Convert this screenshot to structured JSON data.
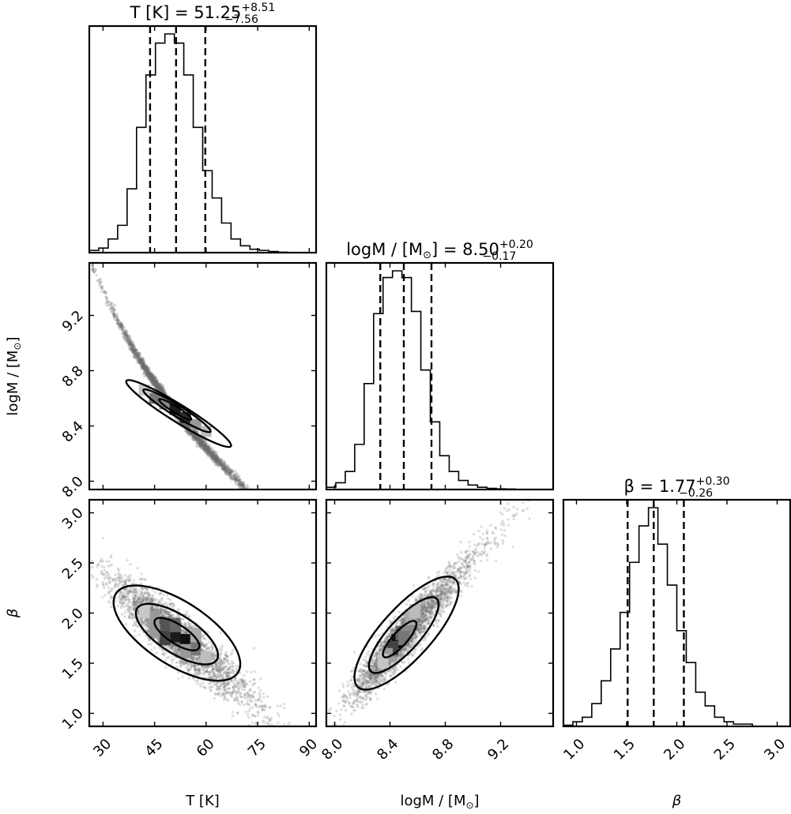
{
  "chart_data": {
    "type": "corner",
    "parameters": [
      {
        "key": "T",
        "label": "T [K]",
        "range": [
          26,
          92
        ],
        "ticks": [
          "30",
          "45",
          "60",
          "75",
          "90"
        ],
        "tick_values": [
          30,
          45,
          60,
          75,
          90
        ],
        "title_base": "T [K] = 51.25",
        "title_sup": "+8.51",
        "title_sub": "−7.56",
        "median": 51.25,
        "q16": 43.69,
        "q84": 59.76
      },
      {
        "key": "logM",
        "label": "logM / [M",
        "label_end": "]",
        "sun_symbol": "⊙",
        "range": [
          7.94,
          9.58
        ],
        "ticks": [
          "8.0",
          "8.4",
          "8.8",
          "9.2"
        ],
        "tick_values": [
          8.0,
          8.4,
          8.8,
          9.2
        ],
        "title_base": "logM / [M",
        "title_sun": "⊙",
        "title_value": "] = 8.50",
        "title_sup": "+0.20",
        "title_sub": "−0.17",
        "median": 8.5,
        "q16": 8.33,
        "q84": 8.7
      },
      {
        "key": "beta",
        "label": "β",
        "range": [
          0.87,
          3.13
        ],
        "ticks": [
          "1.0",
          "1.5",
          "2.0",
          "2.5",
          "3.0"
        ],
        "tick_values": [
          1.0,
          1.5,
          2.0,
          2.5,
          3.0
        ],
        "title_base": "β = 1.77",
        "title_sup": "+0.30",
        "title_sub": "−0.26",
        "median": 1.77,
        "q16": 1.51,
        "q84": 2.07
      }
    ],
    "histograms": [
      {
        "param": "T",
        "edges": [
          26,
          28.75,
          31.5,
          34.25,
          37,
          39.75,
          42.5,
          45.25,
          48,
          50.75,
          53.5,
          56.25,
          59,
          61.75,
          64.5,
          67.25,
          70,
          72.75,
          75.5,
          78.25,
          81,
          83.75,
          86.5,
          89.25,
          92
        ],
        "counts": [
          1,
          2,
          6,
          12,
          28,
          55,
          78,
          92,
          96,
          92,
          78,
          55,
          36,
          24,
          13,
          6,
          3,
          1.5,
          1,
          0.5,
          0.2,
          0,
          0,
          0
        ]
      },
      {
        "param": "logM",
        "edges": [
          7.94,
          8.0083,
          8.0767,
          8.145,
          8.2133,
          8.2817,
          8.35,
          8.4183,
          8.4867,
          8.555,
          8.6233,
          8.6917,
          8.76,
          8.8283,
          8.8967,
          8.965,
          9.0333,
          9.1017,
          9.17,
          9.2383,
          9.3067,
          9.375,
          9.4433,
          9.5117,
          9.58
        ],
        "counts": [
          1,
          3,
          8,
          20,
          47,
          78,
          94,
          97,
          94,
          79,
          53,
          30,
          15,
          8,
          4,
          2,
          1,
          0.5,
          0.3,
          0.2,
          0,
          0,
          0,
          0
        ]
      },
      {
        "param": "beta",
        "edges": [
          0.87,
          0.9642,
          1.0583,
          1.1525,
          1.2467,
          1.3408,
          1.435,
          1.5292,
          1.6233,
          1.7175,
          1.8117,
          1.9058,
          2.0,
          2.0942,
          2.1883,
          2.2825,
          2.3767,
          2.4708,
          2.565,
          2.6592,
          2.7533,
          2.8475,
          2.9417,
          3.0358,
          3.13
        ],
        "counts": [
          0.5,
          2,
          4,
          10,
          20,
          34,
          50,
          72,
          88,
          96,
          80,
          62,
          42,
          28,
          15,
          9,
          4,
          2,
          1,
          1,
          0,
          0,
          0,
          0
        ]
      }
    ],
    "pairs": [
      {
        "x": "T",
        "y": "logM",
        "x_range": [
          26,
          92
        ],
        "y_range": [
          7.94,
          9.58
        ],
        "relation": "curved anti-correlation"
      },
      {
        "x": "T",
        "y": "beta",
        "x_range": [
          26,
          92
        ],
        "y_range": [
          0.87,
          3.13
        ],
        "relation": "anti-correlation"
      },
      {
        "x": "logM",
        "y": "beta",
        "x_range": [
          7.94,
          9.58
        ],
        "y_range": [
          0.87,
          3.13
        ],
        "relation": "positive correlation"
      }
    ]
  }
}
